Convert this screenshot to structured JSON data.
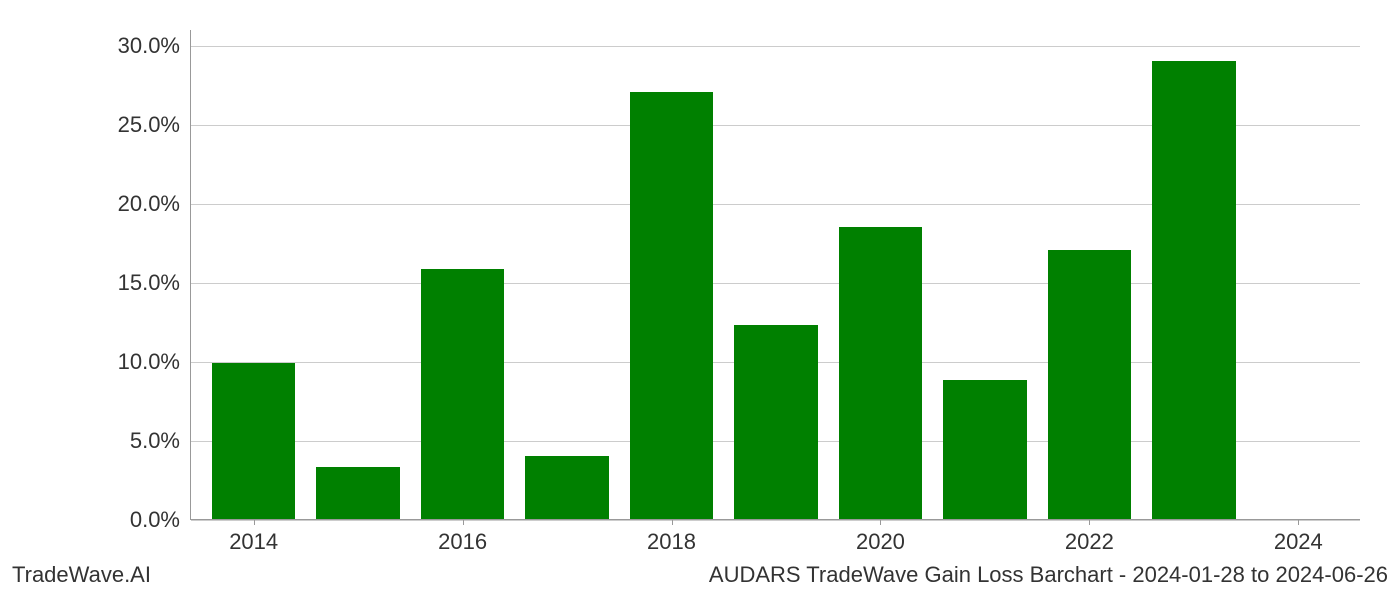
{
  "chart": {
    "type": "bar",
    "background_color": "#ffffff",
    "grid_color": "#cccccc",
    "axis_color": "#999999",
    "bar_color": "#008000",
    "tick_font_size": 22,
    "tick_color": "#333333",
    "years": [
      2014,
      2015,
      2016,
      2017,
      2018,
      2019,
      2020,
      2021,
      2022,
      2023,
      2024
    ],
    "values": [
      9.9,
      3.3,
      15.8,
      4.0,
      27.0,
      12.3,
      18.5,
      8.8,
      17.0,
      29.0,
      0.0
    ],
    "x_tick_labels": [
      "2014",
      "2016",
      "2018",
      "2020",
      "2022",
      "2024"
    ],
    "x_tick_years": [
      2014,
      2016,
      2018,
      2020,
      2022,
      2024
    ],
    "y_ticks": [
      0,
      5,
      10,
      15,
      20,
      25,
      30
    ],
    "y_tick_labels": [
      "0.0%",
      "5.0%",
      "10.0%",
      "15.0%",
      "20.0%",
      "25.0%",
      "30.0%"
    ],
    "ymin": 0,
    "ymax": 31,
    "xmin": 2013.4,
    "xmax": 2024.6,
    "bar_width": 0.8
  },
  "footer": {
    "left": "TradeWave.AI",
    "right": "AUDARS TradeWave Gain Loss Barchart - 2024-01-28 to 2024-06-26"
  }
}
